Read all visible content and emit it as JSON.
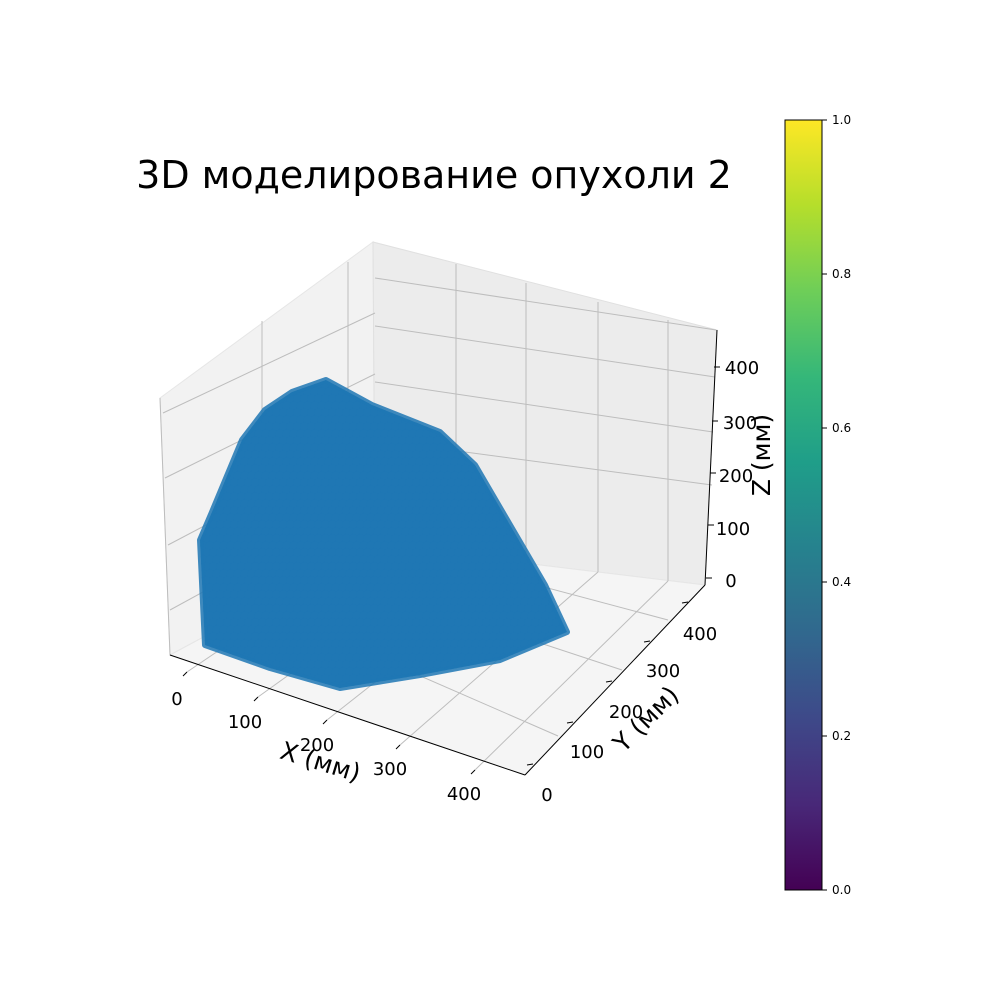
{
  "chart_data": {
    "type": "scatter",
    "title": "3D моделирование опухоли 2",
    "xlabel": "X (мм)",
    "ylabel": "Y (мм)",
    "zlabel": "Z (мм)",
    "x_ticks": [
      "0",
      "100",
      "200",
      "300",
      "400"
    ],
    "y_ticks": [
      "0",
      "100",
      "200",
      "300",
      "400"
    ],
    "z_ticks": [
      "0",
      "100",
      "200",
      "300",
      "400"
    ],
    "xlim": [
      -10,
      470
    ],
    "ylim": [
      -10,
      470
    ],
    "zlim": [
      -10,
      470
    ],
    "grid": true,
    "point_color": "#1f77b4",
    "colorbar": {
      "ticks": [
        "0.0",
        "0.2",
        "0.4",
        "0.6",
        "0.8",
        "1.0"
      ],
      "range": [
        0,
        1
      ],
      "colormap": "viridis",
      "colors": [
        "#440154",
        "#482878",
        "#3e4989",
        "#31688e",
        "#26828e",
        "#1f9e89",
        "#35b779",
        "#6ece58",
        "#b5de2b",
        "#fde725"
      ]
    }
  }
}
